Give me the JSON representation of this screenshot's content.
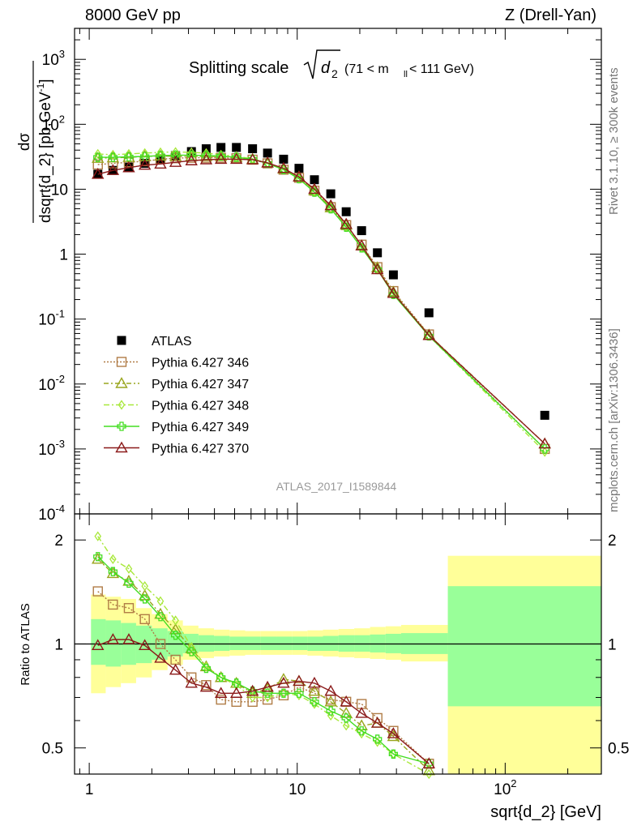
{
  "header": {
    "left": "8000 GeV pp",
    "right": "Z (Drell-Yan)"
  },
  "side_labels": {
    "rivet": "Rivet 3.1.10, ≥ 300k events",
    "mcplots": "mcplots.cern.ch [arXiv:1306.3436]"
  },
  "watermark": "ATLAS_2017_I1589844",
  "colors": {
    "atlas": "#000000",
    "s346": "#b07c46",
    "s347": "#99a51e",
    "s348": "#a8e83a",
    "s349": "#44dd22",
    "s370": "#8b1a1a",
    "band_inner": "#99ff99",
    "band_outer": "#ffff99"
  },
  "chart_data": [
    {
      "type": "scatter",
      "title_main": "Splitting scale",
      "title_sym": "d",
      "title_sub": "2",
      "title_range": "(71 < m",
      "title_range_sub": "ll",
      "title_range_end": " < 111 GeV)",
      "ylabel": "dσ/dsqrt{d_2} [pb,GeV^-1]",
      "ylabel_num": "dσ",
      "ylabel_den": "dsqrt{d_2} [pb,GeV",
      "ylabel_den_sup": "-1",
      "ylabel_den_end": "]",
      "xscale": "log",
      "yscale": "log",
      "xlim": [
        0.85,
        290
      ],
      "ylim": [
        0.0001,
        3000
      ],
      "ytick_labels": [
        {
          "v": 0.0001,
          "base": "10",
          "exp": "-4"
        },
        {
          "v": 0.001,
          "base": "10",
          "exp": "-3"
        },
        {
          "v": 0.01,
          "base": "10",
          "exp": "-2"
        },
        {
          "v": 0.1,
          "base": "10",
          "exp": "-1"
        },
        {
          "v": 1,
          "base": "1",
          "exp": ""
        },
        {
          "v": 10,
          "base": "10",
          "exp": ""
        },
        {
          "v": 100,
          "base": "10",
          "exp": "2"
        },
        {
          "v": 1000,
          "base": "10",
          "exp": "3"
        }
      ],
      "legend_position": "left-middle",
      "series": [
        {
          "name": "ATLAS",
          "key": "atlas",
          "marker": "square",
          "x": [
            1.1,
            1.3,
            1.55,
            1.85,
            2.2,
            2.6,
            3.1,
            3.65,
            4.3,
            5.1,
            6.1,
            7.2,
            8.6,
            10.2,
            12.1,
            14.5,
            17.2,
            20.4,
            24.3,
            29,
            43,
            155
          ],
          "y": [
            17,
            19.5,
            22,
            25,
            29,
            33,
            38,
            42,
            44,
            44,
            42,
            36,
            29,
            21,
            14,
            8.5,
            4.5,
            2.3,
            1.05,
            0.48,
            0.125,
            0.0033
          ]
        },
        {
          "name": "Pythia 6.427 346",
          "key": "s346",
          "marker": "square-open",
          "dash": "2,2",
          "x": [
            1.1,
            1.3,
            1.55,
            1.85,
            2.2,
            2.6,
            3.1,
            3.65,
            4.3,
            5.1,
            6.1,
            7.2,
            8.6,
            10.2,
            12.1,
            14.5,
            17.2,
            20.4,
            24.3,
            29,
            43,
            155
          ],
          "y": [
            24,
            25,
            26,
            27,
            29,
            30,
            30.5,
            30.5,
            30.5,
            30,
            28.5,
            25,
            20,
            15,
            9.5,
            5.3,
            2.8,
            1.4,
            0.63,
            0.27,
            0.058,
            0.001
          ]
        },
        {
          "name": "Pythia 6.427 347",
          "key": "s347",
          "marker": "triangle-open",
          "dash": "6,3,2,3",
          "x": [
            1.1,
            1.3,
            1.55,
            1.85,
            2.2,
            2.6,
            3.1,
            3.65,
            4.3,
            5.1,
            6.1,
            7.2,
            8.6,
            10.2,
            12.1,
            14.5,
            17.2,
            20.4,
            24.3,
            29,
            43,
            155
          ],
          "y": [
            30,
            30.5,
            31,
            32,
            32.5,
            32,
            32,
            32,
            32,
            31,
            29,
            25.5,
            20.5,
            15.5,
            9.5,
            5.2,
            2.8,
            1.35,
            0.62,
            0.26,
            0.057,
            0.0012
          ]
        },
        {
          "name": "Pythia 6.427 348",
          "key": "s348",
          "marker": "diamond-open",
          "dash": "7,3,2,3",
          "x": [
            1.1,
            1.3,
            1.55,
            1.85,
            2.2,
            2.6,
            3.1,
            3.65,
            4.3,
            5.1,
            6.1,
            7.2,
            8.6,
            10.2,
            12.1,
            14.5,
            17.2,
            20.4,
            24.3,
            29,
            43,
            155
          ],
          "y": [
            35,
            34,
            35,
            36,
            37,
            37.5,
            37,
            36,
            34,
            32,
            29.5,
            25,
            20,
            14.5,
            9,
            5,
            2.6,
            1.25,
            0.58,
            0.24,
            0.055,
            0.0009
          ]
        },
        {
          "name": "Pythia 6.427 349",
          "key": "s349",
          "marker": "cross-open",
          "dash": "",
          "x": [
            1.1,
            1.3,
            1.55,
            1.85,
            2.2,
            2.6,
            3.1,
            3.65,
            4.3,
            5.1,
            6.1,
            7.2,
            8.6,
            10.2,
            12.1,
            14.5,
            17.2,
            20.4,
            24.3,
            29,
            43,
            155
          ],
          "y": [
            31,
            31,
            31.5,
            32,
            33,
            33.5,
            33.5,
            33,
            32.5,
            31,
            29,
            25,
            20,
            14.5,
            9,
            5,
            2.6,
            1.25,
            0.58,
            0.24,
            0.055,
            0.001
          ]
        },
        {
          "name": "Pythia 6.427 370",
          "key": "s370",
          "marker": "triangle-open",
          "dash": "",
          "x": [
            1.1,
            1.3,
            1.55,
            1.85,
            2.2,
            2.6,
            3.1,
            3.65,
            4.3,
            5.1,
            6.1,
            7.2,
            8.6,
            10.2,
            12.1,
            14.5,
            17.2,
            20.4,
            24.3,
            29,
            43,
            155
          ],
          "y": [
            17,
            19.5,
            21.5,
            23.5,
            24.5,
            26,
            27.5,
            28.5,
            29,
            29,
            28.5,
            25.5,
            21,
            15.5,
            10,
            5.6,
            2.9,
            1.35,
            0.58,
            0.25,
            0.056,
            0.0012
          ]
        }
      ]
    },
    {
      "type": "line",
      "ylabel": "Ratio to ATLAS",
      "xlabel": "sqrt{d_2} [GeV]",
      "xscale": "log",
      "yscale": "log",
      "xlim": [
        0.85,
        290
      ],
      "ylim": [
        0.42,
        2.38
      ],
      "ytick_labels": [
        {
          "v": 0.5,
          "label": "0.5"
        },
        {
          "v": 1,
          "label": "1"
        },
        {
          "v": 2,
          "label": "2"
        }
      ],
      "xtick_labels": [
        {
          "v": 1,
          "base": "1",
          "exp": ""
        },
        {
          "v": 10,
          "base": "10",
          "exp": ""
        },
        {
          "v": 100,
          "base": "10",
          "exp": "2"
        }
      ],
      "bands": {
        "edges": [
          1.02,
          1.2,
          1.42,
          1.68,
          2.0,
          2.38,
          2.82,
          3.35,
          3.98,
          4.73,
          5.62,
          6.68,
          7.94,
          9.44,
          11.2,
          13.3,
          15.8,
          18.8,
          22.4,
          26.6,
          31.6,
          53,
          290
        ],
        "inner": [
          [
            0.87,
            1.18
          ],
          [
            0.86,
            1.17
          ],
          [
            0.87,
            1.15
          ],
          [
            0.88,
            1.13
          ],
          [
            0.9,
            1.11
          ],
          [
            0.92,
            1.09
          ],
          [
            0.94,
            1.07
          ],
          [
            0.95,
            1.06
          ],
          [
            0.955,
            1.055
          ],
          [
            0.96,
            1.05
          ],
          [
            0.96,
            1.05
          ],
          [
            0.96,
            1.05
          ],
          [
            0.96,
            1.05
          ],
          [
            0.96,
            1.05
          ],
          [
            0.955,
            1.05
          ],
          [
            0.955,
            1.055
          ],
          [
            0.95,
            1.06
          ],
          [
            0.95,
            1.06
          ],
          [
            0.945,
            1.065
          ],
          [
            0.94,
            1.07
          ],
          [
            0.935,
            1.075
          ],
          [
            0.66,
            1.47
          ]
        ],
        "outer": [
          [
            0.72,
            1.39
          ],
          [
            0.75,
            1.37
          ],
          [
            0.77,
            1.35
          ],
          [
            0.8,
            1.27
          ],
          [
            0.84,
            1.22
          ],
          [
            0.87,
            1.17
          ],
          [
            0.9,
            1.13
          ],
          [
            0.91,
            1.11
          ],
          [
            0.92,
            1.1
          ],
          [
            0.925,
            1.095
          ],
          [
            0.93,
            1.09
          ],
          [
            0.93,
            1.09
          ],
          [
            0.93,
            1.09
          ],
          [
            0.93,
            1.09
          ],
          [
            0.925,
            1.095
          ],
          [
            0.92,
            1.1
          ],
          [
            0.915,
            1.105
          ],
          [
            0.91,
            1.11
          ],
          [
            0.905,
            1.12
          ],
          [
            0.9,
            1.125
          ],
          [
            0.89,
            1.135
          ],
          [
            0.4,
            1.8
          ]
        ]
      },
      "series": [
        {
          "name": "Pythia 6.427 346",
          "key": "s346",
          "marker": "square-open",
          "dash": "2,2",
          "x": [
            1.1,
            1.3,
            1.55,
            1.85,
            2.2,
            2.6,
            3.1,
            3.65,
            4.3,
            5.1,
            6.1,
            7.2,
            8.6,
            10.2,
            12.1,
            14.5,
            17.2,
            20.4,
            24.3,
            29,
            43
          ],
          "y": [
            1.42,
            1.3,
            1.27,
            1.18,
            1.0,
            0.9,
            0.8,
            0.76,
            0.69,
            0.68,
            0.68,
            0.69,
            0.71,
            0.75,
            0.72,
            0.69,
            0.68,
            0.67,
            0.61,
            0.56,
            0.45
          ]
        },
        {
          "name": "Pythia 6.427 347",
          "key": "s347",
          "marker": "triangle-open",
          "dash": "6,3,2,3",
          "x": [
            1.1,
            1.3,
            1.55,
            1.85,
            2.2,
            2.6,
            3.1,
            3.65,
            4.3,
            5.1,
            6.1,
            7.2,
            8.6,
            10.2,
            12.1,
            14.5,
            17.2,
            20.4,
            24.3,
            29,
            43
          ],
          "y": [
            1.76,
            1.6,
            1.52,
            1.38,
            1.22,
            1.1,
            0.97,
            0.86,
            0.8,
            0.77,
            0.72,
            0.74,
            0.79,
            0.78,
            0.73,
            0.68,
            0.63,
            0.58,
            0.59,
            0.54,
            0.43
          ]
        },
        {
          "name": "Pythia 6.427 348",
          "key": "s348",
          "marker": "diamond-open",
          "dash": "7,3,2,3",
          "x": [
            1.1,
            1.3,
            1.55,
            1.85,
            2.2,
            2.6,
            3.1,
            3.65,
            4.3,
            5.1,
            6.1,
            7.2,
            8.6,
            10.2,
            12.1,
            14.5,
            17.2,
            20.4,
            24.3,
            29,
            43
          ],
          "y": [
            2.05,
            1.76,
            1.65,
            1.47,
            1.33,
            1.17,
            0.98,
            0.86,
            0.8,
            0.76,
            0.7,
            0.7,
            0.72,
            0.71,
            0.67,
            0.62,
            0.58,
            0.55,
            0.52,
            0.48,
            0.42
          ]
        },
        {
          "name": "Pythia 6.427 349",
          "key": "s349",
          "marker": "cross-open",
          "dash": "",
          "x": [
            1.1,
            1.3,
            1.55,
            1.85,
            2.2,
            2.6,
            3.1,
            3.65,
            4.3,
            5.1,
            6.1,
            7.2,
            8.6,
            10.2,
            12.1,
            14.5,
            17.2,
            20.4,
            24.3,
            29,
            43
          ],
          "y": [
            1.79,
            1.62,
            1.5,
            1.35,
            1.2,
            1.06,
            0.95,
            0.85,
            0.8,
            0.77,
            0.73,
            0.72,
            0.72,
            0.72,
            0.68,
            0.64,
            0.61,
            0.56,
            0.53,
            0.48,
            0.45
          ]
        },
        {
          "name": "Pythia 6.427 370",
          "key": "s370",
          "marker": "triangle-open",
          "dash": "",
          "x": [
            1.1,
            1.3,
            1.55,
            1.85,
            2.2,
            2.6,
            3.1,
            3.65,
            4.3,
            5.1,
            6.1,
            7.2,
            8.6,
            10.2,
            12.1,
            14.5,
            17.2,
            20.4,
            24.3,
            29,
            43
          ],
          "y": [
            0.99,
            1.03,
            1.03,
            0.99,
            0.91,
            0.84,
            0.77,
            0.75,
            0.72,
            0.72,
            0.73,
            0.75,
            0.77,
            0.78,
            0.77,
            0.73,
            0.68,
            0.63,
            0.59,
            0.55,
            0.45
          ]
        }
      ]
    }
  ]
}
